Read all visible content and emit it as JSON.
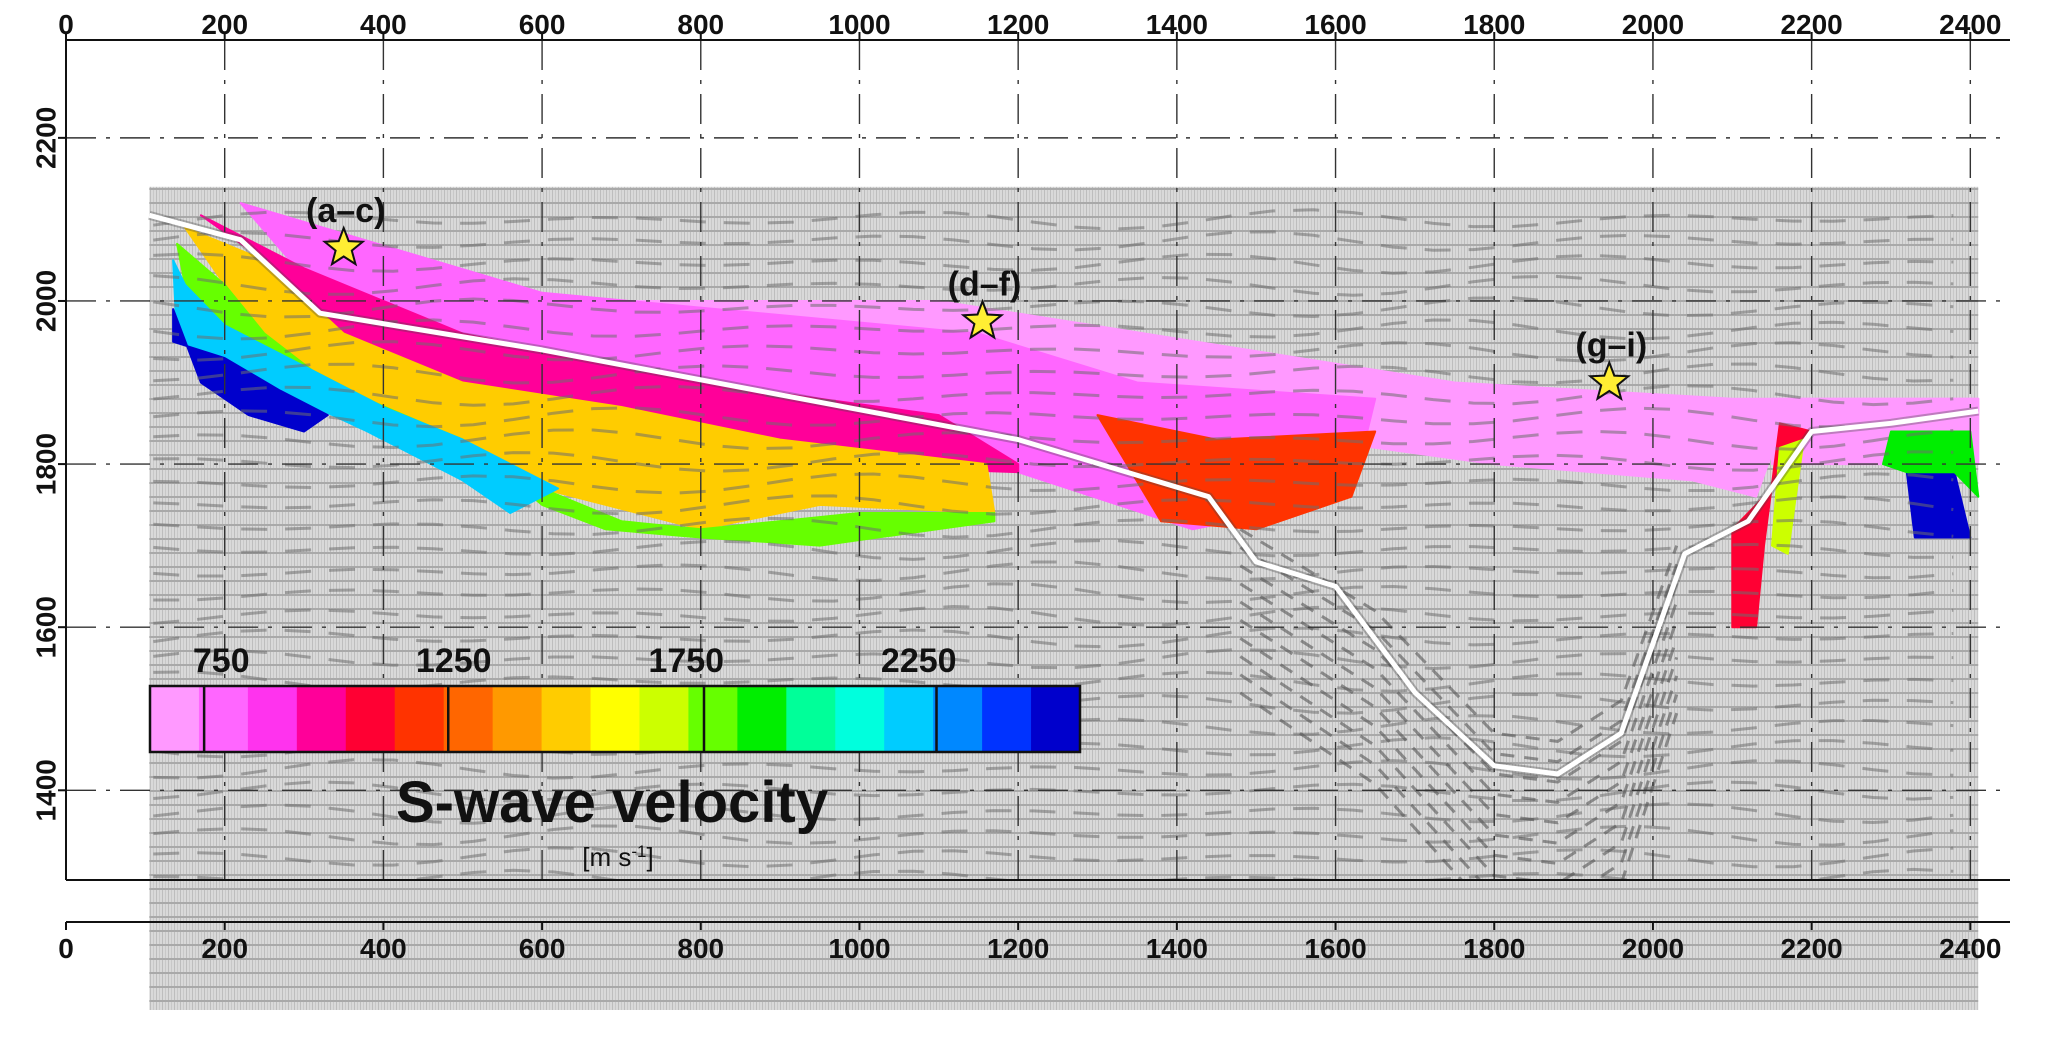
{
  "chart_data": {
    "type": "heatmap",
    "title": "",
    "x_axis": {
      "ticks": [
        0,
        200,
        400,
        600,
        800,
        1000,
        1200,
        1400,
        1600,
        1800,
        2000,
        2200,
        2400
      ],
      "range": [
        0,
        2450
      ],
      "shown": [
        "top",
        "bottom"
      ]
    },
    "y_axis": {
      "ticks": [
        1400,
        1600,
        1800,
        2000,
        2200
      ],
      "range": [
        1290,
        2320
      ]
    },
    "grid": true,
    "background": "seismic reflection section (grayscale)",
    "colorbar": {
      "title": "S-wave velocity",
      "unit_text": "[m s",
      "unit_sup": "-1",
      "unit_close": "]",
      "ticks": [
        750,
        1250,
        1750,
        2250
      ],
      "range": [
        500,
        2500
      ],
      "colors": [
        "#ff99ff",
        "#ff66ff",
        "#ff33ee",
        "#ff0099",
        "#ff0033",
        "#ff3300",
        "#ff6600",
        "#ff9900",
        "#ffcc00",
        "#ffff00",
        "#ccff00",
        "#66ff00",
        "#00ee00",
        "#00ff99",
        "#00ffdd",
        "#00ccff",
        "#0088ff",
        "#0033ff",
        "#0000cc"
      ]
    },
    "sites": [
      {
        "label": "(a–c)",
        "x": 350,
        "y": 2065
      },
      {
        "label": "(d–f)",
        "x": 1155,
        "y": 1975
      },
      {
        "label": "(g–i)",
        "x": 1945,
        "y": 1900
      }
    ],
    "surface_line": {
      "color": "#ffffff",
      "points": [
        [
          105,
          2105
        ],
        [
          220,
          2075
        ],
        [
          320,
          1985
        ],
        [
          600,
          1940
        ],
        [
          900,
          1885
        ],
        [
          1200,
          1830
        ],
        [
          1440,
          1760
        ],
        [
          1500,
          1680
        ],
        [
          1600,
          1650
        ],
        [
          1700,
          1520
        ],
        [
          1800,
          1430
        ],
        [
          1880,
          1420
        ],
        [
          1960,
          1470
        ],
        [
          2040,
          1690
        ],
        [
          2120,
          1730
        ],
        [
          2200,
          1840
        ],
        [
          2300,
          1850
        ],
        [
          2410,
          1865
        ]
      ]
    },
    "velocity_zones": [
      {
        "velocity": 400,
        "poly": [
          [
            2150,
            1800
          ],
          [
            2410,
            1800
          ],
          [
            2410,
            1880
          ],
          [
            2150,
            1880
          ]
        ]
      },
      {
        "velocity": 500,
        "poly": [
          [
            600,
            2000
          ],
          [
            1100,
            2000
          ],
          [
            1750,
            1900
          ],
          [
            2100,
            1880
          ],
          [
            2410,
            1880
          ],
          [
            2410,
            1860
          ],
          [
            2160,
            1840
          ],
          [
            2130,
            1760
          ],
          [
            2050,
            1780
          ],
          [
            1800,
            1800
          ],
          [
            1500,
            1840
          ],
          [
            1300,
            1900
          ]
        ]
      },
      {
        "velocity": 700,
        "poly": [
          [
            220,
            2120
          ],
          [
            600,
            2010
          ],
          [
            1150,
            1960
          ],
          [
            1350,
            1900
          ],
          [
            1650,
            1880
          ],
          [
            1620,
            1760
          ],
          [
            1420,
            1720
          ],
          [
            1200,
            1790
          ],
          [
            1000,
            1830
          ],
          [
            700,
            1870
          ],
          [
            450,
            1950
          ],
          [
            300,
            2030
          ]
        ]
      },
      {
        "velocity": 900,
        "poly": [
          [
            170,
            2105
          ],
          [
            300,
            2040
          ],
          [
            500,
            1960
          ],
          [
            800,
            1900
          ],
          [
            1100,
            1860
          ],
          [
            1200,
            1800
          ],
          [
            1200,
            1790
          ],
          [
            900,
            1800
          ],
          [
            700,
            1840
          ],
          [
            500,
            1880
          ],
          [
            350,
            1960
          ],
          [
            250,
            2050
          ]
        ]
      },
      {
        "velocity": 1100,
        "poly": [
          [
            1300,
            1860
          ],
          [
            1450,
            1830
          ],
          [
            1650,
            1840
          ],
          [
            1620,
            1760
          ],
          [
            1500,
            1720
          ],
          [
            1380,
            1730
          ]
        ]
      },
      {
        "velocity": 1400,
        "poly": [
          [
            150,
            2090
          ],
          [
            250,
            2050
          ],
          [
            350,
            1960
          ],
          [
            500,
            1900
          ],
          [
            700,
            1870
          ],
          [
            900,
            1830
          ],
          [
            1160,
            1800
          ],
          [
            1170,
            1740
          ],
          [
            950,
            1750
          ],
          [
            800,
            1720
          ],
          [
            600,
            1770
          ],
          [
            450,
            1850
          ],
          [
            330,
            1900
          ],
          [
            250,
            1960
          ],
          [
            200,
            2020
          ]
        ]
      },
      {
        "velocity": 1750,
        "poly": [
          [
            140,
            2070
          ],
          [
            200,
            2020
          ],
          [
            250,
            1960
          ],
          [
            330,
            1900
          ],
          [
            450,
            1850
          ],
          [
            520,
            1800
          ],
          [
            600,
            1770
          ],
          [
            700,
            1730
          ],
          [
            800,
            1720
          ],
          [
            1000,
            1740
          ],
          [
            1170,
            1740
          ],
          [
            1170,
            1730
          ],
          [
            950,
            1700
          ],
          [
            800,
            1710
          ],
          [
            680,
            1720
          ],
          [
            600,
            1750
          ],
          [
            500,
            1830
          ],
          [
            400,
            1870
          ],
          [
            300,
            1920
          ],
          [
            200,
            1970
          ],
          [
            150,
            2020
          ]
        ]
      },
      {
        "velocity": 2100,
        "poly": [
          [
            135,
            2050
          ],
          [
            150,
            2020
          ],
          [
            200,
            1970
          ],
          [
            300,
            1920
          ],
          [
            400,
            1870
          ],
          [
            500,
            1830
          ],
          [
            560,
            1800
          ],
          [
            620,
            1770
          ],
          [
            560,
            1740
          ],
          [
            500,
            1780
          ],
          [
            380,
            1840
          ],
          [
            270,
            1890
          ],
          [
            200,
            1930
          ],
          [
            140,
            1950
          ]
        ]
      },
      {
        "velocity": 2450,
        "poly": [
          [
            135,
            1990
          ],
          [
            135,
            1950
          ],
          [
            200,
            1930
          ],
          [
            270,
            1890
          ],
          [
            330,
            1860
          ],
          [
            300,
            1840
          ],
          [
            230,
            1860
          ],
          [
            170,
            1900
          ]
        ]
      },
      {
        "velocity": 1000,
        "poly": [
          [
            2170,
            1800
          ],
          [
            2200,
            1840
          ],
          [
            2160,
            1850
          ],
          [
            2140,
            1700
          ],
          [
            2130,
            1600
          ],
          [
            2100,
            1600
          ],
          [
            2100,
            1720
          ],
          [
            2140,
            1760
          ]
        ]
      },
      {
        "velocity": 1600,
        "poly": [
          [
            2160,
            1820
          ],
          [
            2190,
            1830
          ],
          [
            2170,
            1690
          ],
          [
            2150,
            1700
          ]
        ]
      },
      {
        "velocity": 2450,
        "poly": [
          [
            2320,
            1790
          ],
          [
            2380,
            1790
          ],
          [
            2400,
            1710
          ],
          [
            2330,
            1710
          ]
        ]
      },
      {
        "velocity": 1800,
        "poly": [
          [
            2300,
            1840
          ],
          [
            2400,
            1840
          ],
          [
            2410,
            1760
          ],
          [
            2380,
            1790
          ],
          [
            2320,
            1790
          ],
          [
            2290,
            1800
          ]
        ]
      }
    ]
  }
}
